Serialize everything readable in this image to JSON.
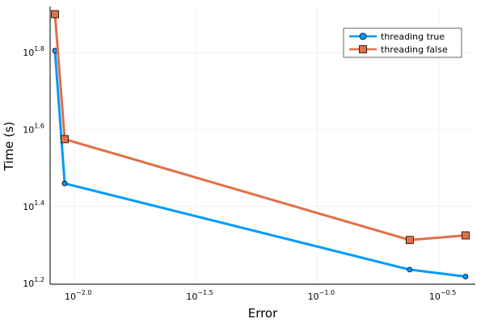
{
  "chart_data": {
    "type": "line",
    "xlabel": "Error",
    "ylabel": "Time (s)",
    "xscale": "log10",
    "yscale": "log10",
    "xlim": [
      -2.1,
      -0.35
    ],
    "ylim": [
      1.198,
      1.92
    ],
    "grid": true,
    "legend_position": "top-right",
    "xticks": [
      {
        "value": -2.0,
        "base": "10",
        "exp": "−2.0"
      },
      {
        "value": -1.5,
        "base": "10",
        "exp": "−1.5"
      },
      {
        "value": -1.0,
        "base": "10",
        "exp": "−1.0"
      },
      {
        "value": -0.5,
        "base": "10",
        "exp": "−0.5"
      }
    ],
    "yticks": [
      {
        "value": 1.2,
        "base": "10",
        "exp": "1.2"
      },
      {
        "value": 1.4,
        "base": "10",
        "exp": "1.4"
      },
      {
        "value": 1.6,
        "base": "10",
        "exp": "1.6"
      },
      {
        "value": 1.8,
        "base": "10",
        "exp": "1.8"
      }
    ],
    "series": [
      {
        "name": "threading true",
        "color": "#009AF9",
        "marker": "circle",
        "points": [
          {
            "x": -2.08,
            "y": 1.805
          },
          {
            "x": -2.04,
            "y": 1.46
          },
          {
            "x": -0.62,
            "y": 1.236
          },
          {
            "x": -0.39,
            "y": 1.218
          }
        ]
      },
      {
        "name": "threading false",
        "color": "#E26F46",
        "marker": "square",
        "points": [
          {
            "x": -2.08,
            "y": 1.9
          },
          {
            "x": -2.04,
            "y": 1.575
          },
          {
            "x": -0.62,
            "y": 1.313
          },
          {
            "x": -0.39,
            "y": 1.325
          }
        ]
      }
    ]
  }
}
